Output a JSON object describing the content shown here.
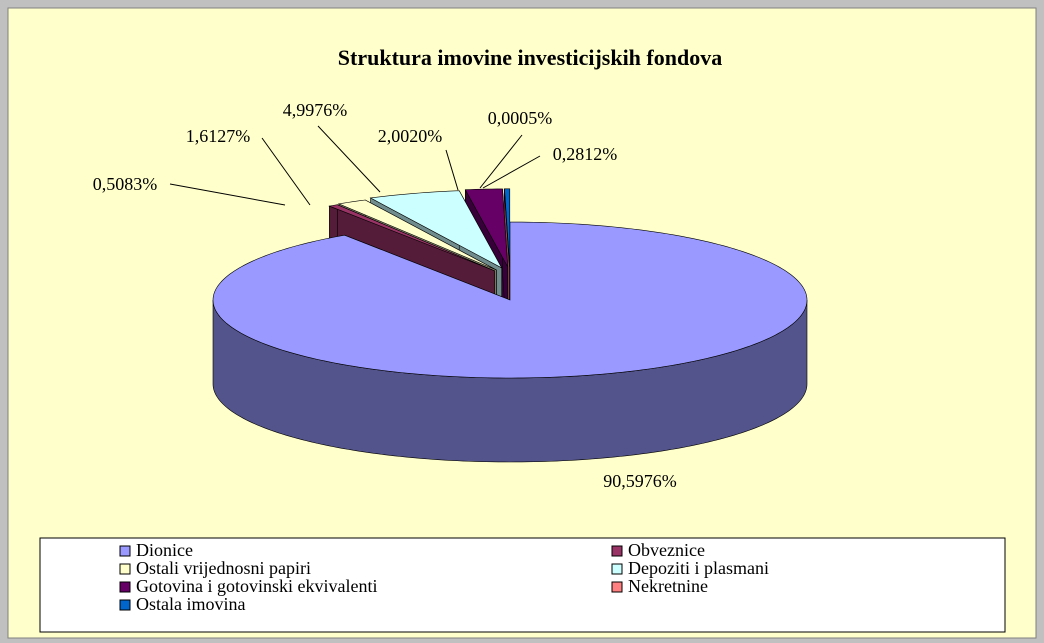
{
  "chart_data": {
    "type": "pie3d",
    "title": "Struktura imovine investicijskih fondova",
    "categories": [
      "Dionice",
      "Obveznice",
      "Ostali vrijednosni papiri",
      "Depoziti i plasmani",
      "Gotovina i gotovinski ekvivalenti",
      "Nekretnine",
      "Ostala imovina"
    ],
    "values": [
      90.5976,
      0.5083,
      1.6127,
      4.9976,
      2.002,
      0.0005,
      0.2812
    ],
    "value_labels": [
      "90,5976%",
      "0,5083%",
      "1,6127%",
      "4,9976%",
      "2,0020%",
      "0,0005%",
      "0,2812%"
    ],
    "colors": [
      "#9999ff",
      "#993366",
      "#ffffcc",
      "#ccffff",
      "#660066",
      "#ff8080",
      "#0066cc"
    ],
    "legend": "bottom"
  }
}
